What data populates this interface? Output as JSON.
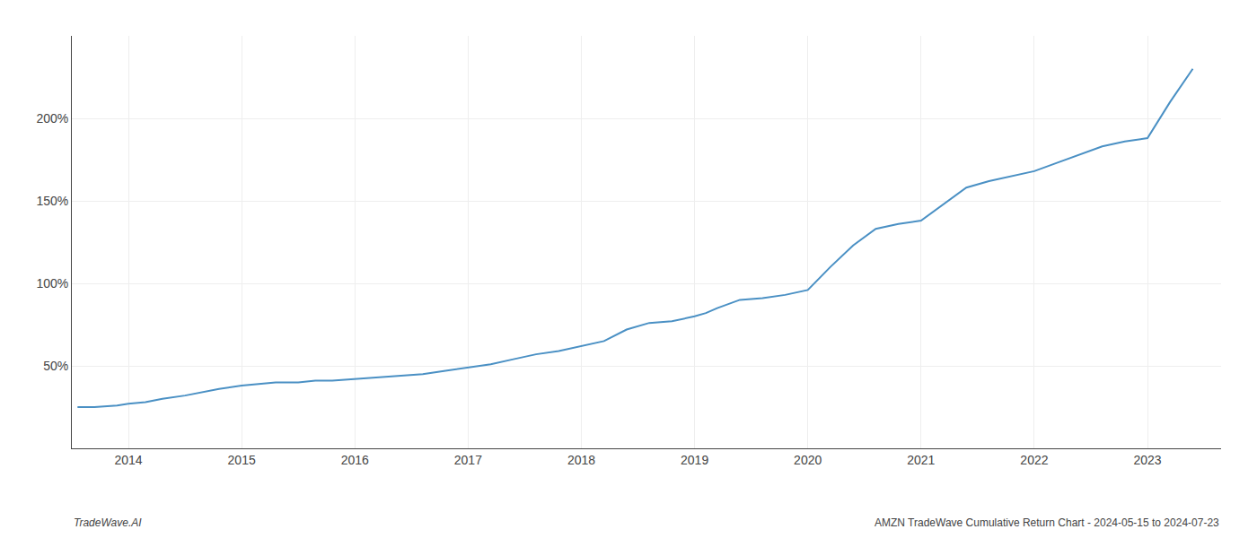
{
  "chart_data": {
    "type": "line",
    "x": [
      2013.55,
      2013.7,
      2013.9,
      2014.0,
      2014.15,
      2014.3,
      2014.5,
      2014.65,
      2014.8,
      2015.0,
      2015.15,
      2015.3,
      2015.5,
      2015.65,
      2015.8,
      2016.0,
      2016.2,
      2016.4,
      2016.6,
      2016.8,
      2017.0,
      2017.2,
      2017.4,
      2017.6,
      2017.8,
      2018.0,
      2018.2,
      2018.4,
      2018.6,
      2018.8,
      2019.0,
      2019.1,
      2019.2,
      2019.4,
      2019.6,
      2019.8,
      2020.0,
      2020.2,
      2020.4,
      2020.6,
      2020.8,
      2021.0,
      2021.2,
      2021.4,
      2021.6,
      2021.8,
      2022.0,
      2022.2,
      2022.4,
      2022.6,
      2022.8,
      2023.0,
      2023.2,
      2023.4
    ],
    "values": [
      25,
      25,
      26,
      27,
      28,
      30,
      32,
      34,
      36,
      38,
      39,
      40,
      40,
      41,
      41,
      42,
      43,
      44,
      45,
      47,
      49,
      51,
      54,
      57,
      59,
      62,
      65,
      72,
      76,
      77,
      80,
      82,
      85,
      90,
      91,
      93,
      96,
      110,
      123,
      133,
      136,
      138,
      148,
      158,
      162,
      165,
      168,
      173,
      178,
      183,
      186,
      188,
      210,
      230
    ],
    "color": "#4a90c4",
    "xlim": [
      2013.5,
      2023.65
    ],
    "xticks": [
      2014,
      2015,
      2016,
      2017,
      2018,
      2019,
      2020,
      2021,
      2022,
      2023
    ],
    "ylim": [
      0,
      250
    ],
    "yticks": [
      {
        "value": 50,
        "label": "50%"
      },
      {
        "value": 100,
        "label": "100%"
      },
      {
        "value": 150,
        "label": "150%"
      },
      {
        "value": 200,
        "label": "200%"
      }
    ],
    "grid": true,
    "annotations": [
      {
        "text": "TradeWave.AI"
      },
      {
        "text": "AMZN TradeWave Cumulative Return Chart - 2024-05-15 to 2024-07-23"
      }
    ]
  }
}
